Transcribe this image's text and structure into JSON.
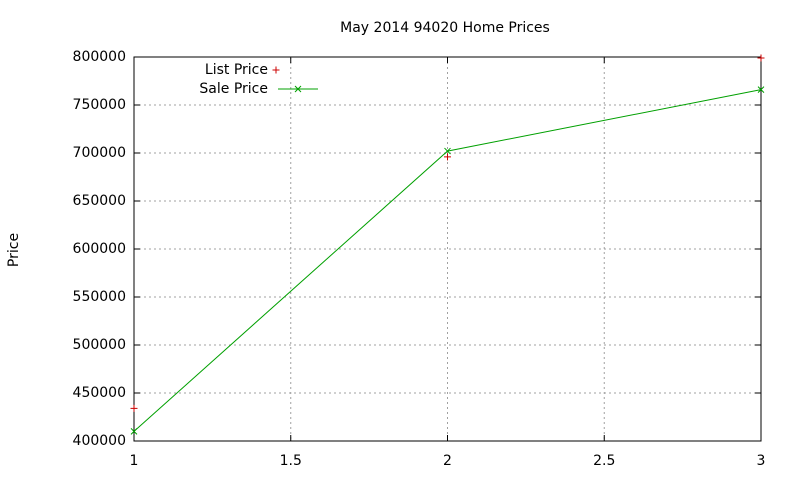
{
  "chart_data": {
    "type": "line",
    "title": "May 2014 94020 Home Prices",
    "y_label": "Price",
    "x": [
      1,
      2,
      3
    ],
    "series": [
      {
        "name": "List Price",
        "color": "#cc0000",
        "style": "points",
        "marker": "plus",
        "values": [
          434000,
          696000,
          799000
        ]
      },
      {
        "name": "Sale Price",
        "color": "#00a000",
        "style": "linespoints",
        "marker": "cross",
        "values": [
          410000,
          702000,
          766000
        ]
      }
    ],
    "xlim": [
      1,
      3
    ],
    "xticks": [
      1,
      1.5,
      2,
      2.5,
      3
    ],
    "ylim": [
      400000,
      800000
    ],
    "yticks": [
      400000,
      450000,
      500000,
      550000,
      600000,
      650000,
      700000,
      750000,
      800000
    ],
    "grid": true,
    "legend": "top-left"
  }
}
